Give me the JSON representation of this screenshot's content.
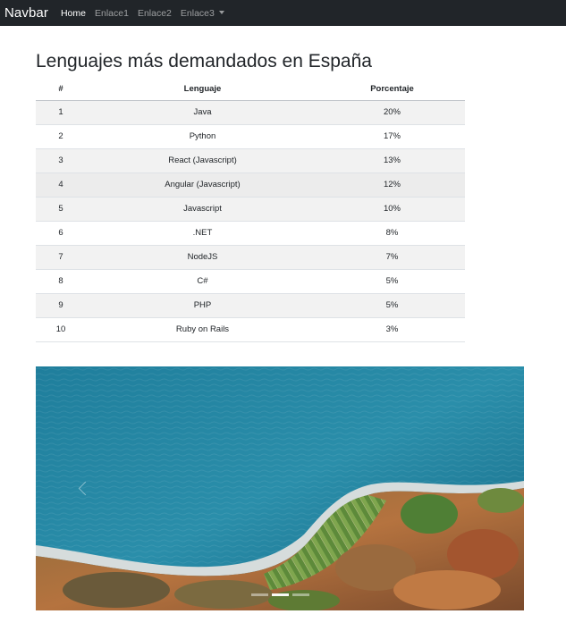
{
  "navbar": {
    "brand": "Navbar",
    "links": [
      {
        "label": "Home",
        "active": true
      },
      {
        "label": "Enlace1",
        "active": false
      },
      {
        "label": "Enlace2",
        "active": false
      },
      {
        "label": "Enlace3",
        "active": false,
        "dropdown": true
      }
    ]
  },
  "main": {
    "title": "Lenguajes más demandados en España",
    "table": {
      "headers": [
        "#",
        "Lenguaje",
        "Porcentaje"
      ],
      "rows": [
        [
          "1",
          "Java",
          "20%"
        ],
        [
          "2",
          "Python",
          "17%"
        ],
        [
          "3",
          "React (Javascript)",
          "13%"
        ],
        [
          "4",
          "Angular (Javascript)",
          "12%"
        ],
        [
          "5",
          "Javascript",
          "10%"
        ],
        [
          "6",
          ".NET",
          "8%"
        ],
        [
          "7",
          "NodeJS",
          "7%"
        ],
        [
          "8",
          "C#",
          "5%"
        ],
        [
          "9",
          "PHP",
          "5%"
        ],
        [
          "10",
          "Ruby on Rails",
          "3%"
        ]
      ]
    }
  },
  "carousel": {
    "active_index": 1,
    "indicator_count": 3,
    "colors": {
      "sea": "#2a8aa6",
      "sea_deep": "#1d6f8c",
      "beach": "#cfd6d8",
      "cliff": "#b06a3c",
      "vegetation": "#4f7f35"
    }
  },
  "theme": {
    "navbar_bg": "#212529",
    "stripe": "#f2f2f2"
  }
}
